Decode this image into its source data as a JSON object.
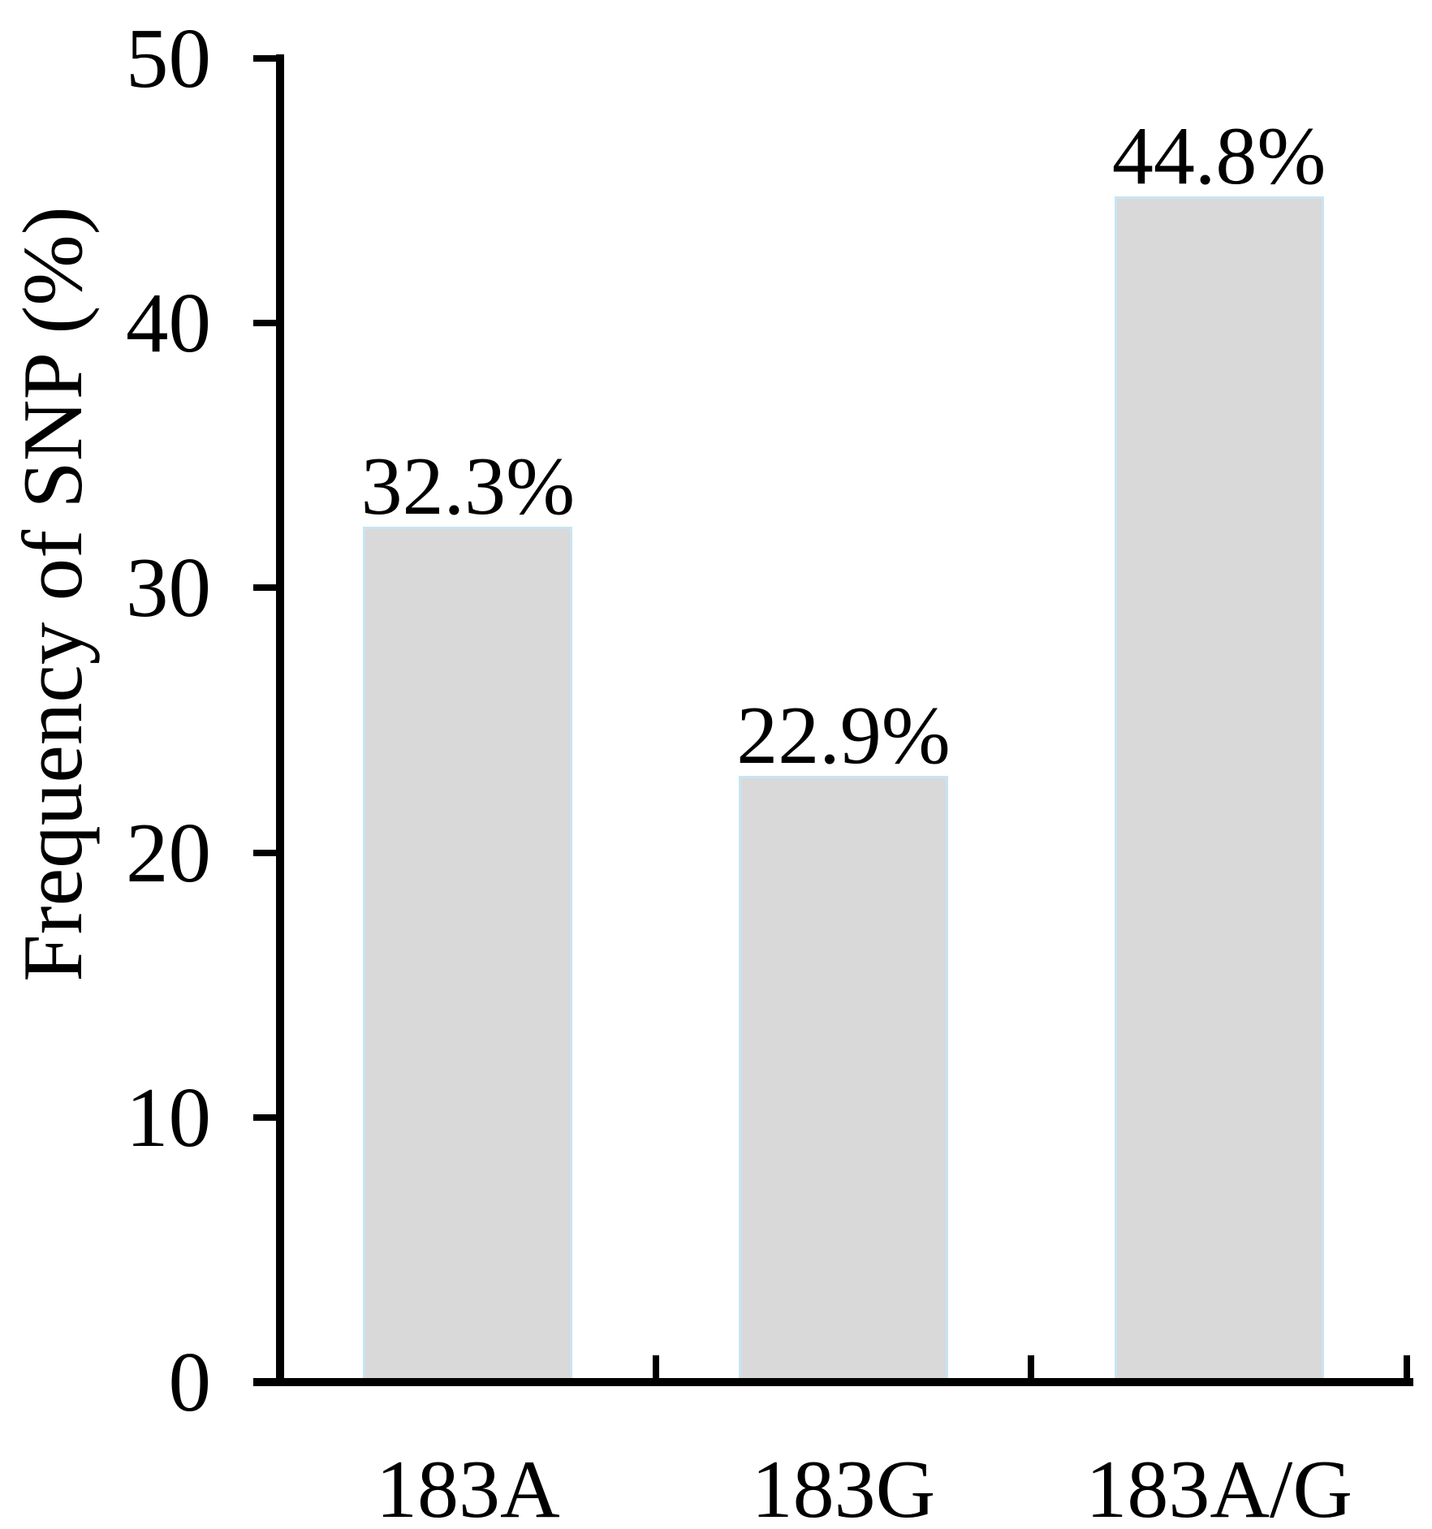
{
  "chart_data": {
    "type": "bar",
    "title": "",
    "xlabel": "",
    "ylabel": "Frequency of SNP (%)",
    "categories": [
      "183A",
      "183G",
      "183A/G"
    ],
    "values": [
      32.3,
      22.9,
      44.8
    ],
    "bar_labels": [
      "32.3%",
      "22.9%",
      "44.8%"
    ],
    "ylim": [
      0,
      50
    ],
    "yticks": [
      0,
      10,
      20,
      30,
      40,
      50
    ],
    "ytick_labels": [
      "0",
      "10",
      "20",
      "30",
      "40",
      "50"
    ],
    "grid": false,
    "legend": "none",
    "colors": {
      "bar_fill": "#d9d9d9",
      "bar_border": "#c8e4f4",
      "axis": "#000000",
      "text": "#000000",
      "background": "#ffffff"
    }
  }
}
